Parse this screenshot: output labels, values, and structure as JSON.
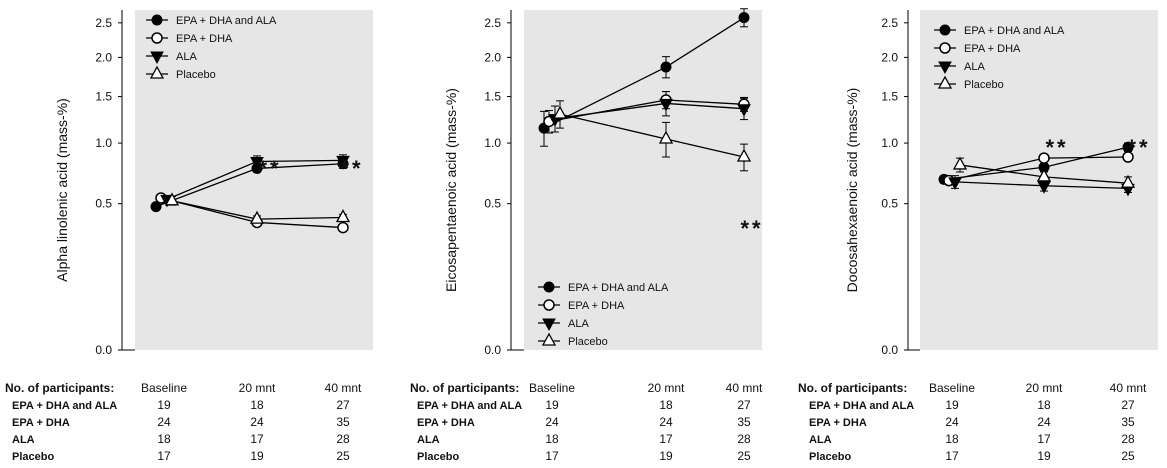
{
  "chart_data": [
    {
      "type": "line",
      "ylabel": "Alpha linolenic acid (mass-%)",
      "x": [
        "Baseline",
        "20 mnt",
        "40 mnt"
      ],
      "yticks": [
        "0.0",
        "0.5",
        "1.0",
        "1.5",
        "2.0",
        "2.5"
      ],
      "y_scale": "sqrt",
      "ylim": [
        0,
        2.7
      ],
      "grid": false,
      "legend_position": "top-left",
      "significance": [
        "",
        "**",
        "**"
      ],
      "series": [
        {
          "name": "EPA + DHA and ALA",
          "marker": "filled-circle",
          "values": [
            0.48,
            0.77,
            0.81
          ],
          "errors": [
            0.02,
            0.03,
            0.04
          ]
        },
        {
          "name": "EPA + DHA",
          "marker": "open-circle",
          "values": [
            0.54,
            0.38,
            0.35
          ],
          "errors": [
            0.02,
            0.02,
            0.02
          ]
        },
        {
          "name": "ALA",
          "marker": "filled-triangle-down",
          "values": [
            0.53,
            0.83,
            0.84
          ],
          "errors": [
            0.02,
            0.05,
            0.05
          ]
        },
        {
          "name": "Placebo",
          "marker": "open-triangle-up",
          "values": [
            0.52,
            0.4,
            0.41
          ],
          "errors": [
            0.03,
            0.02,
            0.02
          ]
        }
      ]
    },
    {
      "type": "line",
      "ylabel": "Eicosapentaenoic acid (mass-%)",
      "x": [
        "Baseline",
        "20 mnt",
        "40 mnt"
      ],
      "yticks": [
        "0.0",
        "0.5",
        "1.0",
        "1.5",
        "2.0",
        "2.5"
      ],
      "y_scale": "sqrt",
      "ylim": [
        0,
        2.7
      ],
      "grid": false,
      "legend_position": "bottom-left",
      "significance": [
        "",
        "",
        "**"
      ],
      "series": [
        {
          "name": "EPA + DHA and ALA",
          "marker": "filled-circle",
          "values": [
            1.15,
            1.87,
            2.58
          ],
          "errors": [
            0.18,
            0.14,
            0.14
          ]
        },
        {
          "name": "EPA + DHA",
          "marker": "open-circle",
          "values": [
            1.22,
            1.46,
            1.41
          ],
          "errors": [
            0.12,
            0.1,
            0.08
          ]
        },
        {
          "name": "ALA",
          "marker": "filled-triangle-down",
          "values": [
            1.25,
            1.42,
            1.36
          ],
          "errors": [
            0.14,
            0.14,
            0.12
          ]
        },
        {
          "name": "Placebo",
          "marker": "open-triangle-up",
          "values": [
            1.3,
            1.04,
            0.87
          ],
          "errors": [
            0.15,
            0.17,
            0.12
          ]
        }
      ]
    },
    {
      "type": "line",
      "ylabel": "Docosahexaenoic acid  (mass-%)",
      "x": [
        "Baseline",
        "20 mnt",
        "40 mnt"
      ],
      "yticks": [
        "0.0",
        "0.5",
        "1.0",
        "1.5",
        "2.0",
        "2.5"
      ],
      "y_scale": "sqrt",
      "ylim": [
        0,
        2.7
      ],
      "grid": false,
      "legend_position": "top-left",
      "significance": [
        "",
        "**",
        "**"
      ],
      "series": [
        {
          "name": "EPA + DHA and ALA",
          "marker": "filled-circle",
          "values": [
            0.68,
            0.78,
            0.96
          ],
          "errors": [
            0.03,
            0.03,
            0.04
          ]
        },
        {
          "name": "EPA + DHA",
          "marker": "open-circle",
          "values": [
            0.67,
            0.86,
            0.87
          ],
          "errors": [
            0.03,
            0.03,
            0.03
          ]
        },
        {
          "name": "ALA",
          "marker": "filled-triangle-down",
          "values": [
            0.66,
            0.63,
            0.61
          ],
          "errors": [
            0.05,
            0.04,
            0.03
          ]
        },
        {
          "name": "Placebo",
          "marker": "open-triangle-up",
          "values": [
            0.8,
            0.7,
            0.65
          ],
          "errors": [
            0.06,
            0.04,
            0.05
          ]
        }
      ]
    }
  ],
  "participants": {
    "title": "No. of participants:",
    "columns": [
      "Baseline",
      "20 mnt",
      "40 mnt"
    ],
    "rows": [
      {
        "group": "EPA + DHA and ALA",
        "values": [
          "19",
          "18",
          "27"
        ]
      },
      {
        "group": "EPA + DHA",
        "values": [
          "24",
          "24",
          "35"
        ]
      },
      {
        "group": "ALA",
        "values": [
          "18",
          "17",
          "28"
        ]
      },
      {
        "group": "Placebo",
        "values": [
          "17",
          "19",
          "25"
        ]
      }
    ]
  },
  "colors": {
    "plot_background": "#e6e6e6",
    "ink": "#000000"
  }
}
